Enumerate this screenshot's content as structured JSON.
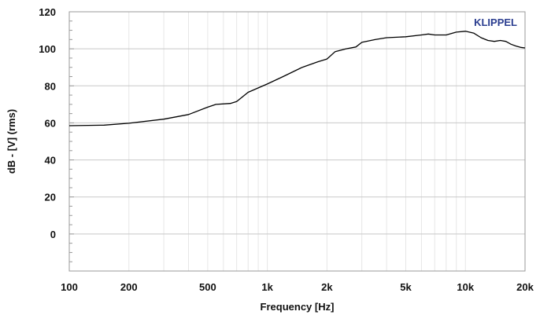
{
  "chart_data": {
    "type": "line",
    "title": "",
    "xlabel": "Frequency [Hz]",
    "ylabel": "dB - [V] (rms)",
    "brand": "KLIPPEL",
    "brand_color": "#2a3d8f",
    "line_color": "#000000",
    "x_scale": "log",
    "xlim": [
      100,
      20000
    ],
    "ylim": [
      -20,
      120
    ],
    "x_ticks": [
      {
        "value": 100,
        "label": "100"
      },
      {
        "value": 200,
        "label": "200"
      },
      {
        "value": 500,
        "label": "500"
      },
      {
        "value": 1000,
        "label": "1k"
      },
      {
        "value": 2000,
        "label": "2k"
      },
      {
        "value": 5000,
        "label": "5k"
      },
      {
        "value": 10000,
        "label": "10k"
      },
      {
        "value": 20000,
        "label": "20k"
      }
    ],
    "y_ticks": [
      {
        "value": 0,
        "label": "0"
      },
      {
        "value": 20,
        "label": "20"
      },
      {
        "value": 40,
        "label": "40"
      },
      {
        "value": 60,
        "label": "60"
      },
      {
        "value": 80,
        "label": "80"
      },
      {
        "value": 100,
        "label": "100"
      },
      {
        "value": 120,
        "label": "120"
      }
    ],
    "grid": true,
    "series": [
      {
        "x": [
          100,
          150,
          200,
          300,
          400,
          500,
          550,
          650,
          700,
          800,
          1000,
          1200,
          1500,
          1800,
          2000,
          2200,
          2500,
          2800,
          3000,
          3500,
          4000,
          5000,
          6000,
          6500,
          7000,
          8000,
          9000,
          10000,
          11000,
          12000,
          13000,
          14000,
          15000,
          16000,
          17000,
          18000,
          19000,
          20000
        ],
        "y": [
          58.5,
          58.8,
          59.8,
          62.0,
          64.5,
          68.5,
          70.0,
          70.5,
          71.5,
          76.5,
          81.0,
          85.0,
          90.0,
          93.0,
          94.5,
          98.5,
          100.0,
          101.0,
          103.5,
          105.0,
          106.0,
          106.5,
          107.5,
          108.0,
          107.5,
          107.5,
          109.0,
          109.5,
          108.5,
          106.0,
          104.5,
          104.0,
          104.5,
          104.0,
          102.5,
          101.5,
          100.8,
          100.5
        ]
      }
    ]
  }
}
